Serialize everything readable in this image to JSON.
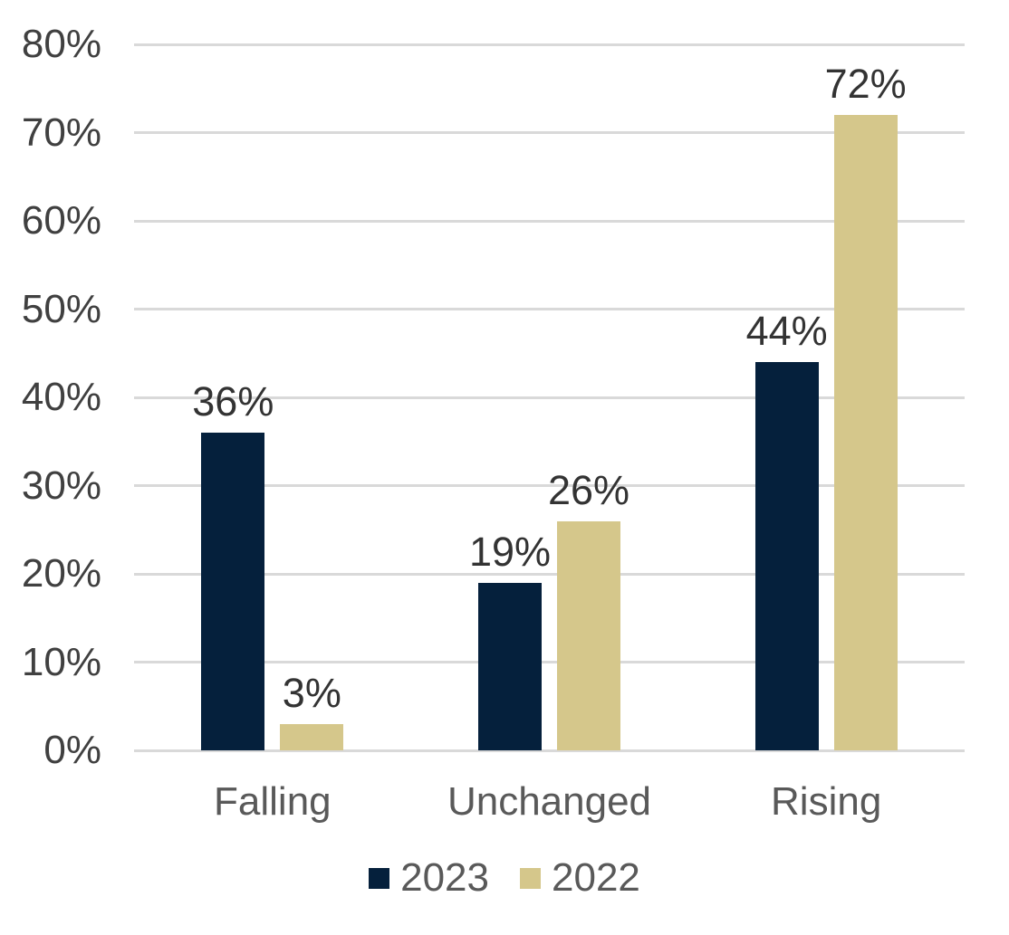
{
  "chart_data": {
    "type": "bar",
    "title": "",
    "xlabel": "",
    "ylabel": "",
    "categories": [
      "Falling",
      "Unchanged",
      "Rising"
    ],
    "series": [
      {
        "name": "2023",
        "color": "#05203C",
        "values": [
          36,
          19,
          44
        ],
        "data_labels": [
          "36%",
          "19%",
          "44%"
        ]
      },
      {
        "name": "2022",
        "color": "#D5C78B",
        "values": [
          3,
          26,
          72
        ],
        "data_labels": [
          "3%",
          "26%",
          "72%"
        ]
      }
    ],
    "ylim": [
      0,
      80
    ],
    "ytick_step": 10,
    "ytick_labels": [
      "0%",
      "10%",
      "20%",
      "30%",
      "40%",
      "50%",
      "60%",
      "70%",
      "80%"
    ],
    "grid": true,
    "legend_position": "bottom"
  },
  "colors": {
    "background": "#FFFFFF",
    "gridline": "#D9D9D9",
    "axis_tick_text": "#404040",
    "data_label_text": "#333333",
    "category_text": "#595959",
    "legend_text": "#595959"
  }
}
